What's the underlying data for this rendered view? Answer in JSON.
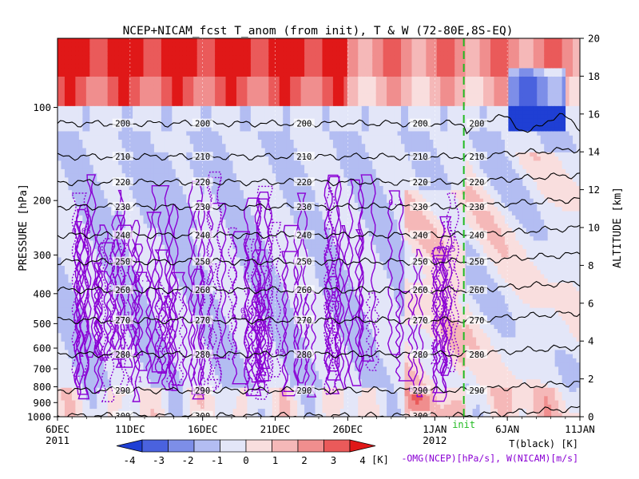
{
  "chart_data": {
    "type": "heatmap",
    "title": "NCEP+NICAM_fcst T_anom (from init), T & W  (72-80E,8S-EQ)",
    "ylabel": "PRESSURE [hPa]",
    "ylabel_right": "ALTITUDE [km]",
    "x_ticks": [
      {
        "day": 0,
        "label": "6DEC",
        "sub": "2011"
      },
      {
        "day": 5,
        "label": "11DEC",
        "sub": ""
      },
      {
        "day": 10,
        "label": "16DEC",
        "sub": ""
      },
      {
        "day": 15,
        "label": "21DEC",
        "sub": ""
      },
      {
        "day": 20,
        "label": "26DEC",
        "sub": ""
      },
      {
        "day": 26,
        "label": "1JAN",
        "sub": "2012"
      },
      {
        "day": 31,
        "label": "6JAN",
        "sub": ""
      },
      {
        "day": 36,
        "label": "11JAN",
        "sub": ""
      }
    ],
    "x_range_days": [
      0,
      36
    ],
    "init_day": 28,
    "init_label": "init",
    "pressure_ticks": [
      {
        "p": 100,
        "label": "100"
      },
      {
        "p": 200,
        "label": "200"
      },
      {
        "p": 300,
        "label": "300"
      },
      {
        "p": 400,
        "label": "400"
      },
      {
        "p": 500,
        "label": "500"
      },
      {
        "p": 600,
        "label": "600"
      },
      {
        "p": 700,
        "label": "700"
      },
      {
        "p": 800,
        "label": "800"
      },
      {
        "p": 900,
        "label": "900"
      },
      {
        "p": 1000,
        "label": "1000"
      }
    ],
    "altitude_range_km": [
      0,
      20
    ],
    "altitude_ticks": [
      0,
      2,
      4,
      6,
      8,
      10,
      12,
      14,
      16,
      18,
      20
    ],
    "temperature_contours": [
      {
        "value": 200,
        "label": "200",
        "z_km": 15.5
      },
      {
        "value": 210,
        "label": "210",
        "z_km": 13.75
      },
      {
        "value": 220,
        "label": "220",
        "z_km": 12.4
      },
      {
        "value": 230,
        "label": "230",
        "z_km": 11.1
      },
      {
        "value": 240,
        "label": "240",
        "z_km": 9.6
      },
      {
        "value": 250,
        "label": "250",
        "z_km": 8.2
      },
      {
        "value": 260,
        "label": "260",
        "z_km": 6.7
      },
      {
        "value": 270,
        "label": "270",
        "z_km": 5.1
      },
      {
        "value": 280,
        "label": "280",
        "z_km": 3.3
      },
      {
        "value": 290,
        "label": "290",
        "z_km": 1.4
      },
      {
        "value": 300,
        "label": "300",
        "z_km": 0.05
      }
    ],
    "temperature_label_days": [
      4.5,
      10,
      17,
      25
    ],
    "w_contour_label": "0.05",
    "w_labels": [
      "0.05",
      "0.1",
      "0.15",
      "0.2",
      "0.05",
      "0.1",
      "0.05",
      "0.15",
      "0.1",
      "0.05",
      "0.1",
      "0.05",
      "0.15",
      "0.1",
      "0.05"
    ],
    "colorbar": {
      "levels": [
        -4,
        -3,
        -2,
        -1,
        0,
        1,
        2,
        3,
        4
      ],
      "tick_labels": [
        "-4",
        "-3",
        "-2",
        "-1",
        "0",
        "1",
        "2",
        "3",
        "4"
      ],
      "colors": [
        "#1f3fd4",
        "#4a62de",
        "#7d8ee8",
        "#b3bdf2",
        "#e3e6f8",
        "#f9dede",
        "#f5b8b8",
        "#f08e8e",
        "#ea5a5a",
        "#e01818"
      ],
      "unit": "[K]"
    },
    "legend_lines": [
      {
        "text": "T(black) [K]",
        "color": "#000000"
      },
      {
        "text": "-OMG(NCEP)[hPa/s], W(NICAM)[m/s]",
        "color": "#8a00d4"
      }
    ],
    "w_color": "#8a00d4",
    "init_color": "#22bb22"
  }
}
